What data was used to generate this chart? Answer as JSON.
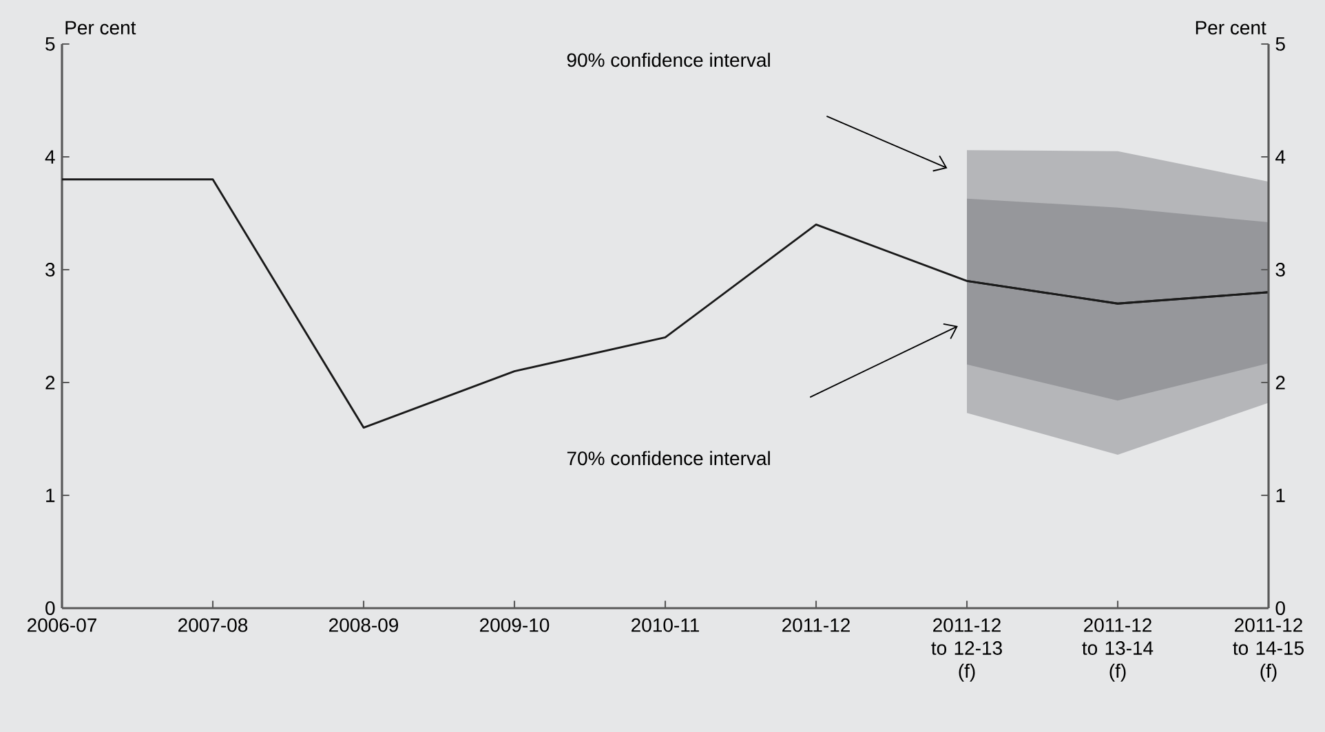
{
  "chart_data": {
    "type": "line",
    "ylabel": "Per cent",
    "y2label": "Per cent",
    "categories": [
      "2006-07",
      "2007-08",
      "2008-09",
      "2009-10",
      "2010-11",
      "2011-12",
      "2011-12 to 12-13 (f)",
      "2011-12 to 13-14 (f)",
      "2011-12 to 14-15 (f)"
    ],
    "ylim": [
      0,
      5
    ],
    "yticks": [
      0,
      1,
      2,
      3,
      4,
      5
    ],
    "y2lim": [
      0,
      5
    ],
    "y2ticks": [
      0,
      1,
      2,
      3,
      4,
      5
    ],
    "annotations": [
      "90% confidence interval",
      "70% confidence interval"
    ],
    "series": [
      {
        "color": "#1a1a1a",
        "values": [
          null,
          null,
          null,
          null,
          null,
          null,
          2.9,
          2.7,
          2.8
        ],
        "lower": [
          null,
          null,
          null,
          null,
          null,
          null,
          1.73,
          1.36,
          1.82
        ],
        "upper": [
          null,
          null,
          null,
          null,
          null,
          null,
          4.06,
          4.05,
          3.78
        ]
      },
      {
        "color": "#1a1a1a",
        "values": [
          3.8,
          3.8,
          1.6,
          2.1,
          2.4,
          3.4,
          2.9,
          2.7,
          2.8
        ],
        "lower": [
          null,
          null,
          null,
          null,
          null,
          null,
          2.16,
          1.84,
          2.17
        ],
        "upper": [
          null,
          null,
          null,
          null,
          null,
          null,
          3.63,
          3.55,
          3.42
        ]
      }
    ]
  }
}
